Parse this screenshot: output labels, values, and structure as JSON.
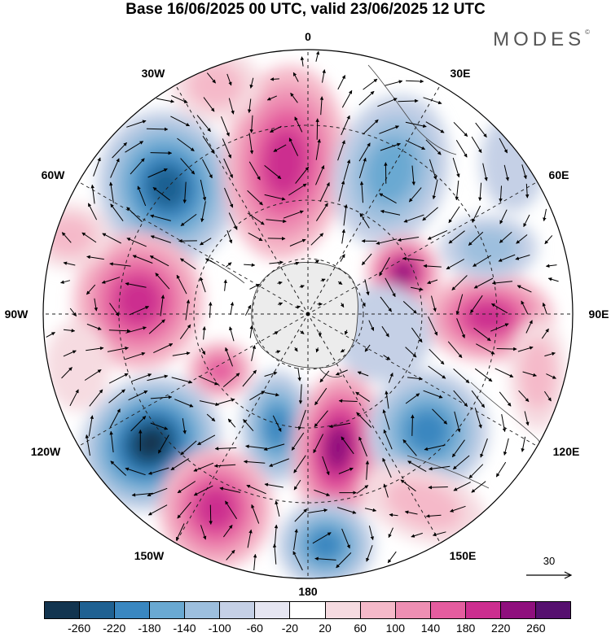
{
  "title": "Base 16/06/2025 00 UTC, valid 23/06/2025 12 UTC",
  "logo": {
    "text": "MODES",
    "mark": "©"
  },
  "longitude_labels": {
    "n0": "0",
    "n30e": "30E",
    "n60e": "60E",
    "n90e": "90E",
    "n120e": "120E",
    "n150e": "150E",
    "n180": "180",
    "n150w": "150W",
    "n120w": "120W",
    "n90w": "90W",
    "n60w": "60W",
    "n30w": "30W"
  },
  "reference_vector": {
    "label": "30"
  },
  "colorbar": {
    "colors": [
      "#12344f",
      "#1f6192",
      "#3a87c0",
      "#6aa9d2",
      "#9dbfde",
      "#c5d0e6",
      "#e6e6f2",
      "#ffffff",
      "#f6dbe1",
      "#f5b9c9",
      "#ee8fb3",
      "#e55d9f",
      "#cc2e8f",
      "#8f0f7d",
      "#56106f"
    ],
    "ticks": [
      "-260",
      "-220",
      "-180",
      "-140",
      "-100",
      "-60",
      "-20",
      "20",
      "60",
      "100",
      "140",
      "180",
      "220",
      "260"
    ]
  },
  "map": {
    "projection": "south-polar-stereographic",
    "land_color": "#f0f0f0",
    "grid": "dashed"
  }
}
